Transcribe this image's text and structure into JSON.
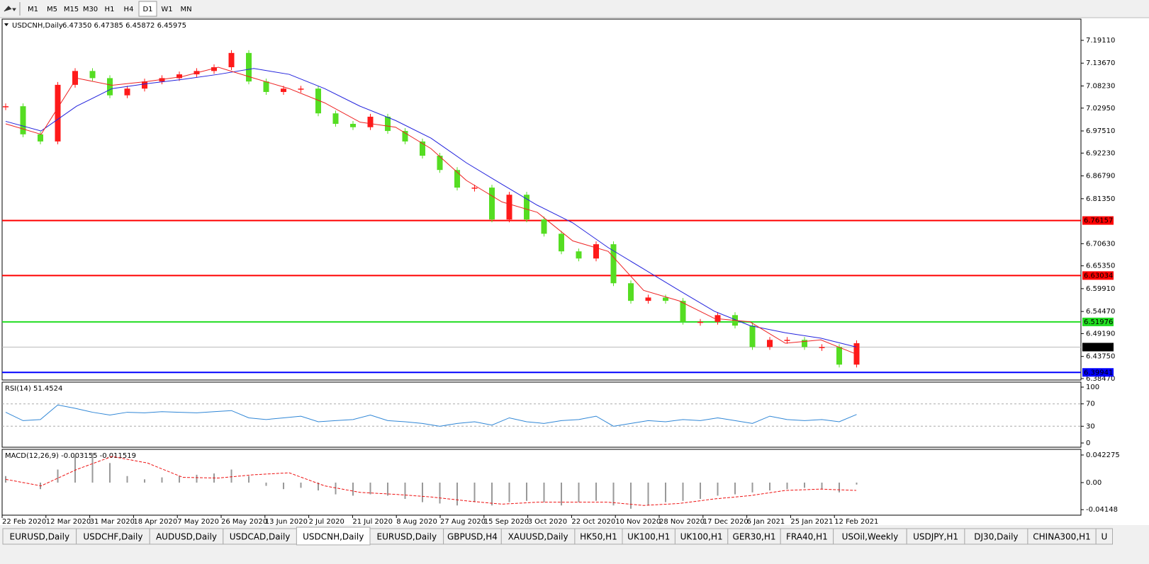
{
  "toolbar": {
    "timeframes": [
      "M1",
      "M5",
      "M15",
      "M30",
      "H1",
      "H4",
      "D1",
      "W1",
      "MN"
    ],
    "active": 6
  },
  "chart_data": [
    {
      "type": "candlestick",
      "title": "USDCNH,Daily",
      "quote": "6.47350 6.47385 6.45872 6.45975",
      "up_color": "#ff1a1a",
      "down_color": "#55dd22",
      "values": [
        7.034,
        6.967,
        6.95,
        7.085,
        7.118,
        7.101,
        7.06,
        7.076,
        7.093,
        7.101,
        7.11,
        7.118,
        7.127,
        7.161,
        7.093,
        7.068,
        7.076,
        7.076,
        7.017,
        6.992,
        6.984,
        7.009,
        6.975,
        6.95,
        6.916,
        6.882,
        6.84,
        6.84,
        6.764,
        6.823,
        6.764,
        6.73,
        6.688,
        6.671,
        6.705,
        6.612,
        6.57,
        6.578,
        6.57,
        6.52,
        6.52,
        6.536,
        6.511,
        6.46,
        6.477,
        6.477,
        6.46,
        6.46,
        6.418,
        6.469
      ],
      "overlays": [
        {
          "color": "#2222dd",
          "values": [
            6.998,
            6.975,
            7.034,
            7.076,
            7.088,
            7.098,
            7.11,
            7.124,
            7.11,
            7.076,
            7.034,
            7.0,
            6.958,
            6.899,
            6.848,
            6.798,
            6.756,
            6.697,
            6.646,
            6.595,
            6.545,
            6.511,
            6.494,
            6.481,
            6.46
          ]
        },
        {
          "color": "#ee2222",
          "values": [
            6.992,
            6.967,
            7.101,
            7.084,
            7.093,
            7.105,
            7.127,
            7.101,
            7.076,
            7.042,
            6.996,
            6.984,
            6.933,
            6.857,
            6.806,
            6.781,
            6.713,
            6.688,
            6.595,
            6.57,
            6.528,
            6.52,
            6.469,
            6.477,
            6.443
          ]
        }
      ],
      "ylim": [
        6.3813,
        7.2417
      ],
      "yticks": [
        {
          "value": 7.1911,
          "label": "7.19110"
        },
        {
          "value": 7.1367,
          "label": "7.13670"
        },
        {
          "value": 7.0823,
          "label": "7.08230"
        },
        {
          "value": 7.0295,
          "label": "7.02950"
        },
        {
          "value": 6.9751,
          "label": "6.97510"
        },
        {
          "value": 6.9223,
          "label": "6.92230"
        },
        {
          "value": 6.8679,
          "label": "6.86790"
        },
        {
          "value": 6.8135,
          "label": "6.81350"
        },
        {
          "value": 6.7063,
          "label": "6.70630"
        },
        {
          "value": 6.6535,
          "label": "6.65350"
        },
        {
          "value": 6.5991,
          "label": "6.59910"
        },
        {
          "value": 6.5447,
          "label": "6.54470"
        },
        {
          "value": 6.4919,
          "label": "6.49190"
        },
        {
          "value": 6.4375,
          "label": "6.43750"
        },
        {
          "value": 6.3847,
          "label": "6.38470"
        }
      ],
      "hlines": [
        {
          "value": 6.76157,
          "label": "6.76157",
          "color": "#ff0000"
        },
        {
          "value": 6.63034,
          "label": "6.63034",
          "color": "#ff0000"
        },
        {
          "value": 6.51976,
          "label": "6.51976",
          "color": "#22dd22"
        },
        {
          "value": 6.39941,
          "label": "6.39941",
          "color": "#0000ff"
        },
        {
          "value": 6.45975,
          "label": "6.45975",
          "color": "#000000"
        }
      ]
    },
    {
      "type": "line",
      "title": "RSI(14) 51.4524",
      "color": "#2f86d6",
      "values": [
        55,
        40,
        42,
        68,
        62,
        55,
        50,
        55,
        54,
        56,
        55,
        54,
        56,
        58,
        45,
        42,
        45,
        48,
        38,
        40,
        42,
        50,
        40,
        38,
        35,
        30,
        35,
        38,
        32,
        45,
        38,
        35,
        40,
        42,
        48,
        30,
        35,
        40,
        38,
        42,
        40,
        45,
        40,
        35,
        48,
        42,
        40,
        42,
        38,
        51
      ],
      "ylim": [
        -7.6,
        108.9
      ],
      "yticks": [
        100,
        70,
        30,
        0
      ],
      "levels": [
        70,
        30
      ]
    },
    {
      "type": "macd",
      "title": "MACD(12,26,9) -0.003155 -0.011519",
      "color": "#999999",
      "signal_color": "#ee1111",
      "values": [
        0.01,
        0.0,
        -0.01,
        0.02,
        0.04,
        0.045,
        0.03,
        0.01,
        0.005,
        0.008,
        0.01,
        0.012,
        0.014,
        0.02,
        0.01,
        -0.005,
        -0.01,
        -0.008,
        -0.012,
        -0.018,
        -0.02,
        -0.018,
        -0.02,
        -0.025,
        -0.03,
        -0.032,
        -0.035,
        -0.03,
        -0.035,
        -0.03,
        -0.028,
        -0.03,
        -0.035,
        -0.03,
        -0.028,
        -0.035,
        -0.04,
        -0.035,
        -0.03,
        -0.028,
        -0.025,
        -0.02,
        -0.018,
        -0.015,
        -0.012,
        -0.01,
        -0.008,
        -0.01,
        -0.015,
        -0.003
      ],
      "signal": [
        0.005,
        -0.005,
        0.02,
        0.04,
        0.03,
        0.008,
        0.007,
        0.012,
        0.015,
        -0.005,
        -0.015,
        -0.018,
        -0.022,
        -0.028,
        -0.033,
        -0.03,
        -0.03,
        -0.03,
        -0.035,
        -0.032,
        -0.025,
        -0.02,
        -0.012,
        -0.01,
        -0.012
      ],
      "ylim": [
        -0.0499,
        0.0509
      ],
      "yticks": [
        0.042275,
        {
          "value": 0,
          "label": "0.00"
        },
        -0.04148
      ],
      "x_labels": [
        "22 Feb 2020",
        "12 Mar 2020",
        "31 Mar 2020",
        "18 Apr 2020",
        "7 May 2020",
        "26 May 2020",
        "13 Jun 2020",
        "2 Jul 2020",
        "21 Jul 2020",
        "8 Aug 2020",
        "27 Aug 2020",
        "15 Sep 2020",
        "3 Oct 2020",
        "22 Oct 2020",
        "10 Nov 2020",
        "28 Nov 2020",
        "17 Dec 2020",
        "6 Jan 2021",
        "25 Jan 2021",
        "12 Feb 2021"
      ]
    }
  ],
  "tabs": {
    "items": [
      "EURUSD,Daily",
      "USDCHF,Daily",
      "AUDUSD,Daily",
      "USDCAD,Daily",
      "USDCNH,Daily",
      "EURUSD,Daily",
      "GBPUSD,H4",
      "XAUUSD,Daily",
      "HK50,H1",
      "UK100,H1",
      "UK100,H1",
      "GER30,H1",
      "FRA40,H1",
      "USOil,Weekly",
      "USDJPY,H1",
      "DJ30,Daily",
      "CHINA300,H1",
      "U"
    ],
    "active": 4
  }
}
